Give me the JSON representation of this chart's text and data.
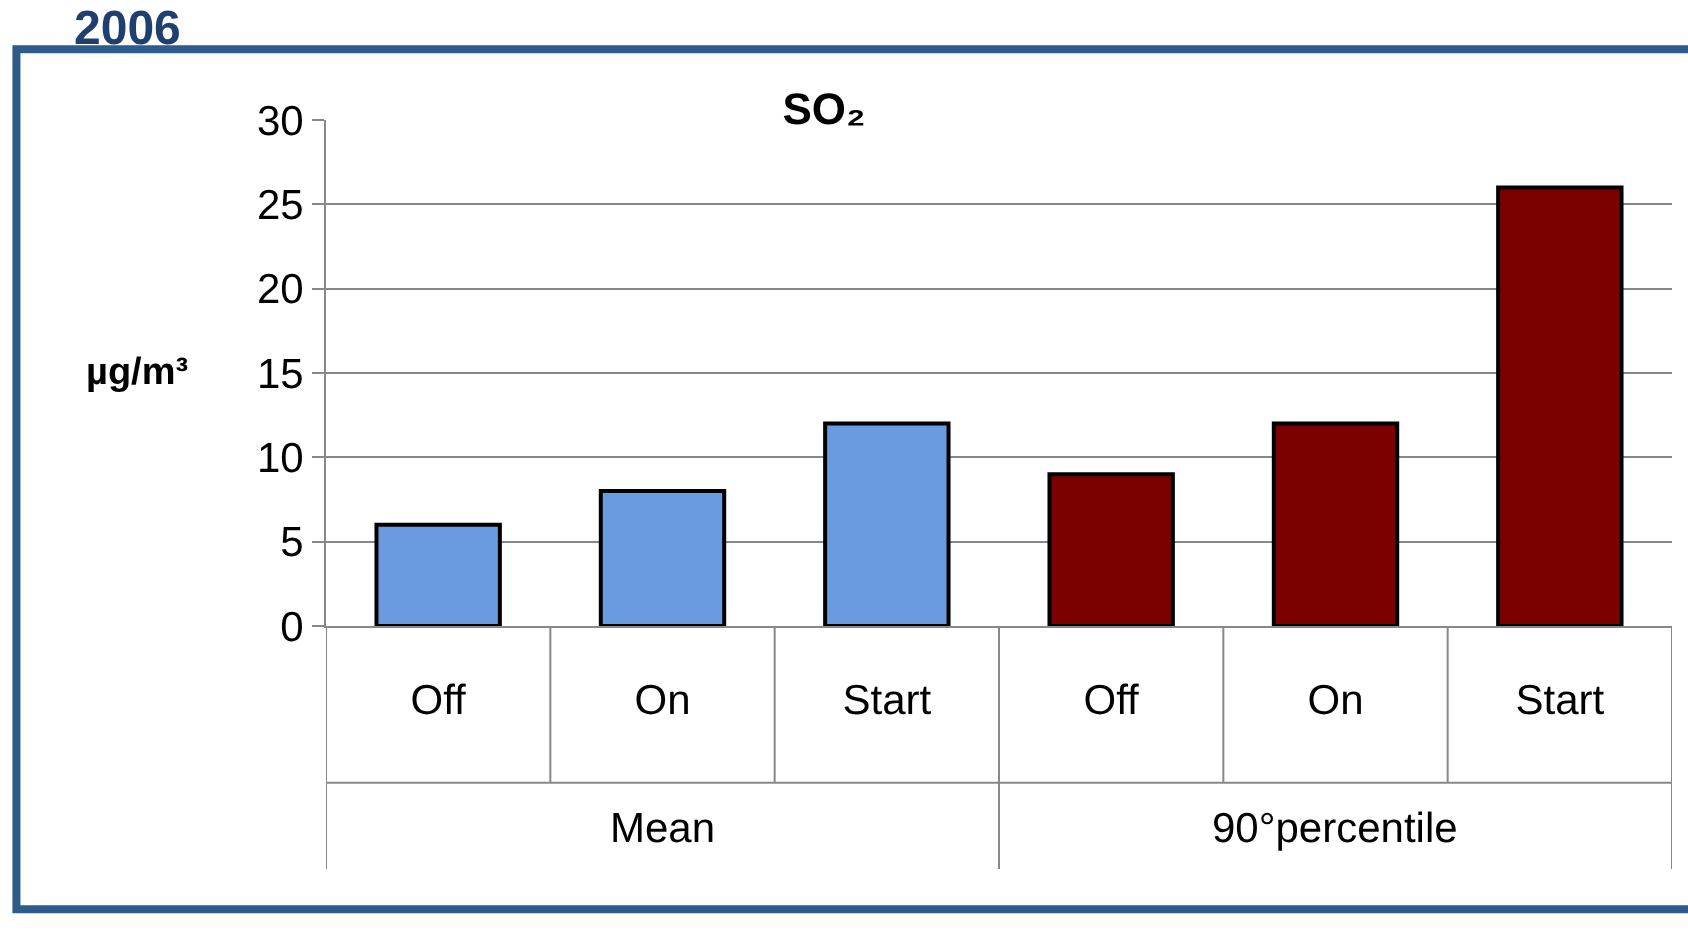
{
  "chart_data": {
    "type": "bar",
    "title": "SO₂",
    "ylabel": "µg/m³",
    "categories": [
      "Off",
      "On",
      "Start",
      "Off",
      "On",
      "Start"
    ],
    "values": [
      6,
      8,
      12,
      9,
      12,
      26
    ],
    "colors": [
      "#6a9be0",
      "#6a9be0",
      "#6a9be0",
      "#7b0000",
      "#7b0000",
      "#7b0000"
    ],
    "ylim": [
      0,
      30
    ],
    "yticks": [
      0,
      5,
      10,
      15,
      20,
      25,
      30
    ],
    "grid": "y",
    "annotations": [
      "2006",
      "Mean",
      "90°percentile"
    ]
  }
}
